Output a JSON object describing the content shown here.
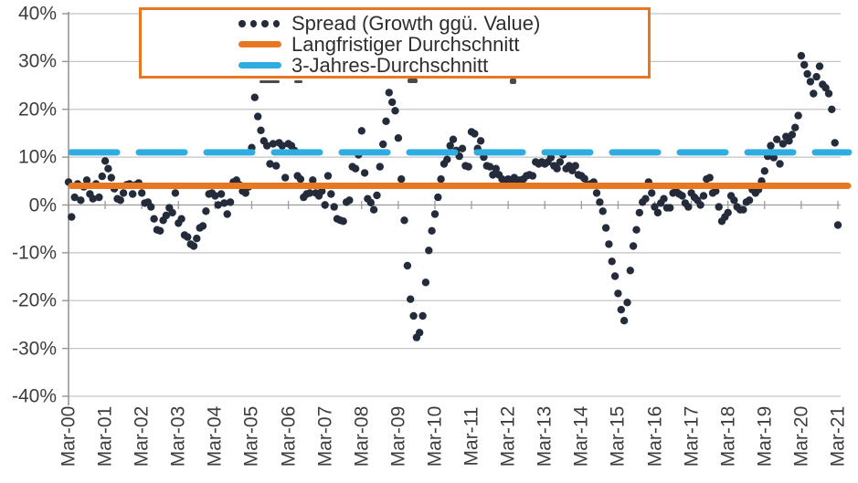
{
  "chart_data": {
    "type": "scatter",
    "title": "",
    "xlabel": "",
    "ylabel": "",
    "ylim": [
      -40,
      40
    ],
    "grid": "horizontal",
    "legend_position": "top",
    "x_tick_labels": [
      "Mar-00",
      "Mar-01",
      "Mar-02",
      "Mar-03",
      "Mar-04",
      "Mar-05",
      "Mar-06",
      "Mar-07",
      "Mar-08",
      "Mar-09",
      "Mar-10",
      "Mar-11",
      "Mar-12",
      "Mar-13",
      "Mar-14",
      "Mar-15",
      "Mar-16",
      "Mar-17",
      "Mar-18",
      "Mar-19",
      "Mar-20",
      "Mar-21"
    ],
    "y_tick_labels": [
      "40%",
      "30%",
      "20%",
      "10%",
      "0%",
      "-10%",
      "-20%",
      "-30%",
      "-40%"
    ],
    "y_tick_values": [
      40,
      30,
      20,
      10,
      0,
      -10,
      -20,
      -30,
      -40
    ],
    "series": [
      {
        "name": "Spread (Growth ggü. Value)",
        "type": "scatter",
        "frequency": "monthly",
        "start_month": "2000-03",
        "end_month": "2021-03",
        "unit": "%",
        "values": [
          4.8,
          -2.5,
          1.6,
          4.4,
          1.0,
          3.8,
          5.2,
          2.3,
          1.3,
          4.4,
          1.6,
          6.0,
          9.2,
          7.6,
          5.7,
          3.4,
          1.3,
          1.0,
          2.5,
          4.2,
          4.4,
          2.3,
          4.2,
          4.6,
          2.5,
          0.4,
          0.6,
          -0.4,
          -2.9,
          -5.2,
          -5.4,
          -3.2,
          -2.2,
          -0.6,
          -1.6,
          2.5,
          -3.8,
          -2.9,
          -6.3,
          -6.7,
          -8.2,
          -8.6,
          -7.0,
          -4.8,
          -4.4,
          -1.3,
          2.3,
          2.5,
          1.9,
          0.0,
          2.3,
          0.4,
          -1.9,
          0.6,
          4.8,
          5.2,
          4.2,
          2.9,
          2.5,
          3.8,
          12.0,
          22.5,
          18.5,
          15.6,
          13.4,
          12.4,
          8.6,
          12.8,
          8.2,
          13.0,
          12.4,
          5.7,
          12.8,
          12.4,
          11.4,
          6.1,
          5.4,
          1.6,
          2.3,
          2.5,
          5.2,
          2.5,
          1.9,
          2.9,
          0.0,
          6.1,
          2.3,
          -0.4,
          -2.9,
          -3.2,
          -3.4,
          0.6,
          1.0,
          8.0,
          7.6,
          10.5,
          15.5,
          6.7,
          1.3,
          0.5,
          -1.0,
          2.0,
          8.0,
          12.7,
          17.5,
          23.5,
          21.5,
          19.7,
          14.0,
          5.4,
          -3.2,
          -12.7,
          -19.7,
          -23.2,
          -27.7,
          -26.7,
          -23.2,
          -16.2,
          -9.5,
          -5.4,
          -1.9,
          1.6,
          5.4,
          8.6,
          9.5,
          12.4,
          13.7,
          11.4,
          10.2,
          11.8,
          8.2,
          8.0,
          15.3,
          14.9,
          11.8,
          13.4,
          10.0,
          8.2,
          8.0,
          6.3,
          7.6,
          6.3,
          5.4,
          5.0,
          5.4,
          5.2,
          5.7,
          5.2,
          5.2,
          5.4,
          6.1,
          6.3,
          6.1,
          9.0,
          8.6,
          9.0,
          8.6,
          9.0,
          9.9,
          8.2,
          7.6,
          9.0,
          10.5,
          7.6,
          8.2,
          7.2,
          8.2,
          6.3,
          6.1,
          5.5,
          4.2,
          4.4,
          4.8,
          2.5,
          0.6,
          -1.3,
          -4.8,
          -8.2,
          -11.8,
          -14.9,
          -18.5,
          -21.9,
          -24.2,
          -20.4,
          -13.7,
          -8.6,
          -5.2,
          -1.6,
          0.6,
          1.3,
          4.8,
          2.5,
          -0.4,
          -1.6,
          0.4,
          1.3,
          -0.6,
          -0.6,
          2.5,
          2.9,
          2.3,
          1.9,
          0.4,
          -0.4,
          2.5,
          1.6,
          1.0,
          0.0,
          1.9,
          5.4,
          5.7,
          2.5,
          2.9,
          -0.4,
          -3.4,
          -2.5,
          -1.6,
          1.9,
          1.0,
          -0.4,
          -1.0,
          -1.0,
          0.6,
          1.0,
          3.2,
          2.5,
          3.2,
          5.0,
          7.1,
          10.2,
          12.4,
          9.9,
          13.7,
          8.6,
          12.8,
          14.3,
          13.4,
          14.7,
          16.2,
          18.7,
          31.2,
          29.3,
          27.4,
          25.8,
          23.3,
          26.8,
          29.0,
          25.2,
          24.5,
          23.3,
          20.0,
          13.0,
          -4.2
        ]
      },
      {
        "name": "Langfristiger Durchschnitt",
        "type": "hline",
        "value": 4.0,
        "unit": "%",
        "style": "solid"
      },
      {
        "name": "3-Jahres-Durchschnitt",
        "type": "hline",
        "value": 11.0,
        "unit": "%",
        "style": "dashed"
      }
    ]
  },
  "legend": {
    "items": [
      {
        "label": "Spread (Growth ggü. Value)",
        "marker": "dots"
      },
      {
        "label": "Langfristiger Durchschnitt",
        "marker": "line-solid"
      },
      {
        "label": "3-Jahres-Durchschnitt",
        "marker": "line-dashed"
      }
    ]
  },
  "colors": {
    "spread_dots": "#242b3a",
    "long_term_avg": "#e87722",
    "three_year_avg": "#2fade0",
    "legend_border": "#e87722",
    "gridline": "#c4c4c4",
    "zero_line": "#9b9b9b",
    "axis": "#8f8f8f",
    "text": "#3d3d3d"
  }
}
